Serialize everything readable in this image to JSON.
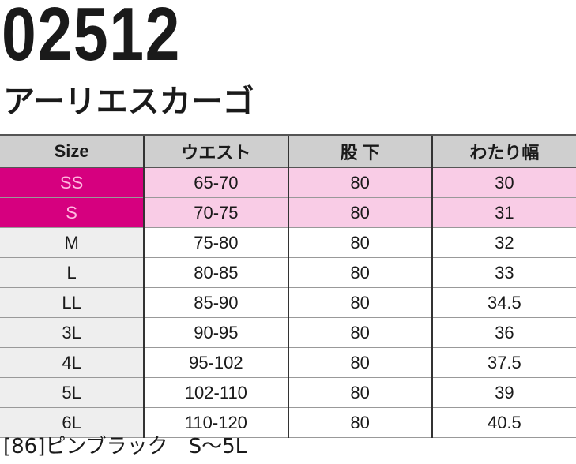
{
  "product": {
    "code": "02512",
    "name": "アーリエスカーゴ"
  },
  "table": {
    "headers": [
      "Size",
      "ウエスト",
      "股 下",
      "わたり幅"
    ],
    "rows": [
      {
        "size": "SS",
        "waist": "65-70",
        "inseam": "80",
        "thigh": "30",
        "highlight": true
      },
      {
        "size": "S",
        "waist": "70-75",
        "inseam": "80",
        "thigh": "31",
        "highlight": true
      },
      {
        "size": "M",
        "waist": "75-80",
        "inseam": "80",
        "thigh": "32",
        "highlight": false
      },
      {
        "size": "L",
        "waist": "80-85",
        "inseam": "80",
        "thigh": "33",
        "highlight": false
      },
      {
        "size": "LL",
        "waist": "85-90",
        "inseam": "80",
        "thigh": "34.5",
        "highlight": false
      },
      {
        "size": "3L",
        "waist": "90-95",
        "inseam": "80",
        "thigh": "36",
        "highlight": false
      },
      {
        "size": "4L",
        "waist": "95-102",
        "inseam": "80",
        "thigh": "37.5",
        "highlight": false
      },
      {
        "size": "5L",
        "waist": "102-110",
        "inseam": "80",
        "thigh": "39",
        "highlight": false
      },
      {
        "size": "6L",
        "waist": "110-120",
        "inseam": "80",
        "thigh": "40.5",
        "highlight": false
      }
    ]
  },
  "footer": {
    "note": "[86]ピンブラック　S〜5L"
  },
  "colors": {
    "accent": "#d6007f",
    "highlight_row": "#f9cce6",
    "header": "#cfcfcf"
  }
}
